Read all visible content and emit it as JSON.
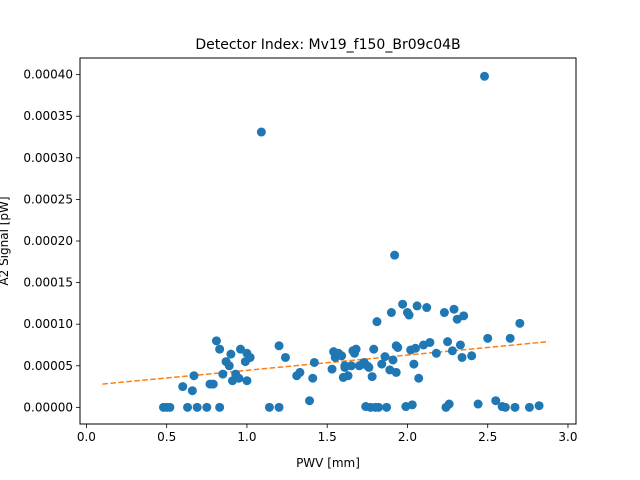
{
  "chart_data": {
    "type": "scatter",
    "title": "Detector Index: Mv19_f150_Br09c04B",
    "xlabel": "PWV [mm]",
    "ylabel": "A2 Signal [pW]",
    "xlim": [
      -0.04,
      3.05
    ],
    "ylim": [
      -2e-05,
      0.00042
    ],
    "xticks": [
      0.0,
      0.5,
      1.0,
      1.5,
      2.0,
      2.5,
      3.0
    ],
    "xtick_labels": [
      "0.0",
      "0.5",
      "1.0",
      "1.5",
      "2.0",
      "2.5",
      "3.0"
    ],
    "yticks": [
      0.0,
      5e-05,
      0.0001,
      0.00015,
      0.0002,
      0.00025,
      0.0003,
      0.00035,
      0.0004
    ],
    "ytick_labels": [
      "0.00000",
      "0.00005",
      "0.00010",
      "0.00015",
      "0.00020",
      "0.00025",
      "0.00030",
      "0.00035",
      "0.00040"
    ],
    "grid": false,
    "series": [
      {
        "name": "data",
        "kind": "scatter",
        "color": "#1f77b4",
        "x": [
          0.48,
          0.5,
          0.52,
          0.6,
          0.63,
          0.66,
          0.67,
          0.69,
          0.75,
          0.77,
          0.79,
          0.81,
          0.83,
          0.83,
          0.85,
          0.87,
          0.89,
          0.9,
          0.91,
          0.93,
          0.95,
          0.96,
          0.99,
          1.0,
          1.0,
          1.02,
          1.09,
          1.14,
          1.2,
          1.2,
          1.24,
          1.31,
          1.33,
          1.39,
          1.41,
          1.42,
          1.53,
          1.54,
          1.55,
          1.57,
          1.59,
          1.6,
          1.61,
          1.61,
          1.63,
          1.65,
          1.66,
          1.67,
          1.68,
          1.7,
          1.72,
          1.73,
          1.74,
          1.75,
          1.76,
          1.77,
          1.78,
          1.79,
          1.8,
          1.81,
          1.82,
          1.84,
          1.86,
          1.87,
          1.89,
          1.9,
          1.91,
          1.92,
          1.93,
          1.93,
          1.94,
          1.97,
          1.99,
          2.0,
          2.01,
          2.02,
          2.03,
          2.04,
          2.05,
          2.06,
          2.07,
          2.1,
          2.12,
          2.14,
          2.18,
          2.23,
          2.24,
          2.25,
          2.26,
          2.28,
          2.29,
          2.31,
          2.33,
          2.34,
          2.35,
          2.4,
          2.44,
          2.48,
          2.5,
          2.55,
          2.59,
          2.61,
          2.64,
          2.67,
          2.7,
          2.76,
          2.82
        ],
        "y": [
          0.0,
          0.0,
          0.0,
          2.5e-05,
          0.0,
          2e-05,
          3.8e-05,
          0.0,
          0.0,
          2.8e-05,
          2.8e-05,
          8e-05,
          7e-05,
          0.0,
          4e-05,
          5.5e-05,
          5e-05,
          6.4e-05,
          3.2e-05,
          4e-05,
          3.5e-05,
          7e-05,
          5.5e-05,
          6.5e-05,
          3.2e-05,
          6e-05,
          0.000331,
          0.0,
          0.0,
          7.4e-05,
          6e-05,
          3.8e-05,
          4.2e-05,
          8e-06,
          3.5e-05,
          5.4e-05,
          4.6e-05,
          6.7e-05,
          6e-05,
          6.5e-05,
          6.2e-05,
          3.6e-05,
          4.8e-05,
          5e-05,
          3.8e-05,
          5e-05,
          6.8e-05,
          6.5e-05,
          7e-05,
          5e-05,
          5.2e-05,
          5.4e-05,
          1e-06,
          5e-05,
          4.8e-05,
          0.0,
          3.7e-05,
          7e-05,
          0.0,
          0.000103,
          0.0,
          5.2e-05,
          6.1e-05,
          0.0,
          4.5e-05,
          0.000114,
          5.7e-05,
          0.000183,
          4.2e-05,
          7.4e-05,
          7.2e-05,
          0.000124,
          1e-06,
          0.000114,
          0.000111,
          6.9e-05,
          3e-06,
          5.2e-05,
          7.1e-05,
          0.000122,
          3.5e-05,
          7.5e-05,
          0.00012,
          7.8e-05,
          6.5e-05,
          0.000114,
          0.0,
          7.9e-05,
          4e-06,
          6.8e-05,
          0.000118,
          0.000106,
          7.5e-05,
          6e-05,
          0.00011,
          6.2e-05,
          4e-06,
          0.000398,
          8.3e-05,
          8e-06,
          1e-06,
          0.0,
          8.3e-05,
          0.0,
          0.000101,
          0.0,
          2e-06
        ]
      },
      {
        "name": "fit",
        "kind": "line",
        "style": "dashed",
        "color": "#ff7f0e",
        "x": [
          0.1,
          2.88
        ],
        "y": [
          2.8e-05,
          7.9e-05
        ]
      }
    ]
  }
}
